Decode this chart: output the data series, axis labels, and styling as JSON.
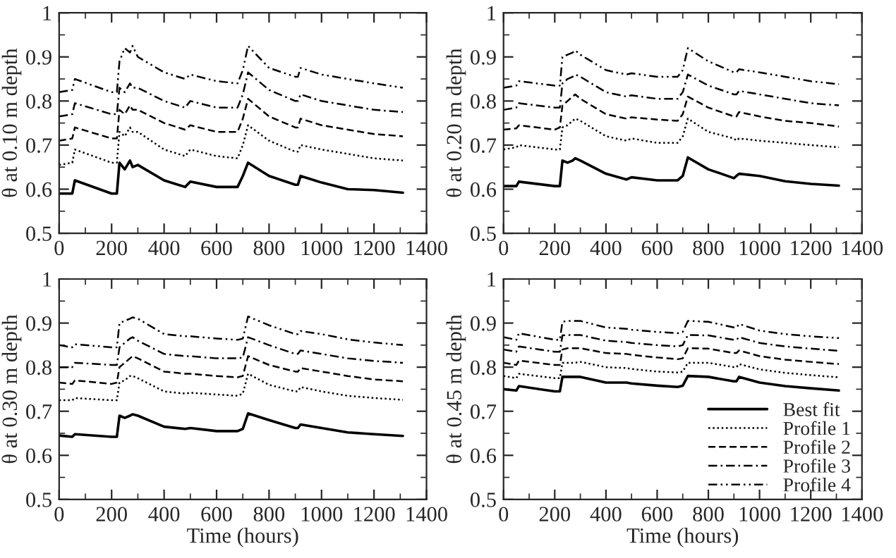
{
  "chart_data": [
    {
      "type": "line",
      "ylabel": "θ at 0.10 m depth",
      "xlim": [
        0,
        1400
      ],
      "xticks": [
        0,
        200,
        400,
        600,
        800,
        1000,
        1200,
        1400
      ],
      "ylim": [
        0.5,
        1
      ],
      "yticks": [
        0.5,
        0.6,
        0.7,
        0.8,
        0.9,
        1
      ],
      "grid": false,
      "legend": false,
      "x": [
        0,
        50,
        60,
        200,
        220,
        230,
        250,
        270,
        280,
        300,
        400,
        480,
        500,
        600,
        680,
        700,
        720,
        800,
        900,
        910,
        920,
        1000,
        1100,
        1200,
        1310
      ],
      "series": [
        {
          "color": "#000000",
          "line_style": "solid",
          "values": [
            0.59,
            0.59,
            0.62,
            0.59,
            0.59,
            0.66,
            0.645,
            0.665,
            0.65,
            0.655,
            0.62,
            0.605,
            0.617,
            0.605,
            0.605,
            0.63,
            0.66,
            0.63,
            0.61,
            0.61,
            0.63,
            0.615,
            0.6,
            0.598,
            0.592
          ]
        },
        {
          "color": "#000000",
          "line_style": "dotted",
          "values": [
            0.655,
            0.66,
            0.69,
            0.66,
            0.66,
            0.73,
            0.72,
            0.74,
            0.73,
            0.73,
            0.69,
            0.675,
            0.69,
            0.675,
            0.67,
            0.7,
            0.745,
            0.71,
            0.685,
            0.685,
            0.7,
            0.69,
            0.68,
            0.67,
            0.665
          ]
        },
        {
          "color": "#000000",
          "line_style": "dashed",
          "values": [
            0.71,
            0.715,
            0.74,
            0.715,
            0.715,
            0.78,
            0.77,
            0.79,
            0.78,
            0.78,
            0.75,
            0.735,
            0.745,
            0.73,
            0.73,
            0.76,
            0.805,
            0.765,
            0.74,
            0.74,
            0.76,
            0.745,
            0.735,
            0.725,
            0.72
          ]
        },
        {
          "color": "#000000",
          "line_style": "dashdot",
          "values": [
            0.765,
            0.77,
            0.795,
            0.77,
            0.77,
            0.83,
            0.82,
            0.84,
            0.83,
            0.83,
            0.8,
            0.785,
            0.8,
            0.785,
            0.785,
            0.815,
            0.865,
            0.825,
            0.8,
            0.8,
            0.815,
            0.8,
            0.79,
            0.78,
            0.775
          ]
        },
        {
          "color": "#000000",
          "line_style": "dashdotdot",
          "values": [
            0.82,
            0.825,
            0.85,
            0.82,
            0.82,
            0.89,
            0.92,
            0.91,
            0.925,
            0.9,
            0.865,
            0.85,
            0.86,
            0.845,
            0.84,
            0.87,
            0.925,
            0.875,
            0.855,
            0.855,
            0.875,
            0.86,
            0.85,
            0.84,
            0.83
          ]
        }
      ]
    },
    {
      "type": "line",
      "ylabel": "θ at 0.20 m depth",
      "xlim": [
        0,
        1400
      ],
      "xticks": [
        0,
        200,
        400,
        600,
        800,
        1000,
        1200,
        1400
      ],
      "ylim": [
        0.5,
        1
      ],
      "yticks": [
        0.5,
        0.6,
        0.7,
        0.8,
        0.9,
        1
      ],
      "grid": false,
      "legend": false,
      "x": [
        0,
        50,
        60,
        200,
        220,
        230,
        250,
        270,
        280,
        300,
        400,
        480,
        500,
        600,
        680,
        700,
        720,
        800,
        900,
        910,
        920,
        1000,
        1100,
        1200,
        1310
      ],
      "series": [
        {
          "color": "#000000",
          "line_style": "solid",
          "values": [
            0.607,
            0.607,
            0.617,
            0.607,
            0.607,
            0.665,
            0.66,
            0.665,
            0.67,
            0.665,
            0.635,
            0.622,
            0.627,
            0.62,
            0.62,
            0.63,
            0.672,
            0.645,
            0.625,
            0.63,
            0.635,
            0.63,
            0.618,
            0.612,
            0.608
          ]
        },
        {
          "color": "#000000",
          "line_style": "dotted",
          "values": [
            0.69,
            0.695,
            0.7,
            0.69,
            0.69,
            0.74,
            0.745,
            0.755,
            0.76,
            0.755,
            0.72,
            0.71,
            0.715,
            0.705,
            0.705,
            0.72,
            0.76,
            0.73,
            0.715,
            0.71,
            0.715,
            0.71,
            0.705,
            0.7,
            0.695
          ]
        },
        {
          "color": "#000000",
          "line_style": "dashed",
          "values": [
            0.735,
            0.738,
            0.745,
            0.735,
            0.74,
            0.79,
            0.8,
            0.81,
            0.815,
            0.805,
            0.77,
            0.76,
            0.763,
            0.758,
            0.755,
            0.77,
            0.81,
            0.785,
            0.765,
            0.765,
            0.775,
            0.765,
            0.755,
            0.75,
            0.742
          ]
        },
        {
          "color": "#000000",
          "line_style": "dashdot",
          "values": [
            0.78,
            0.785,
            0.795,
            0.785,
            0.785,
            0.84,
            0.85,
            0.855,
            0.86,
            0.855,
            0.82,
            0.81,
            0.813,
            0.805,
            0.805,
            0.82,
            0.86,
            0.835,
            0.815,
            0.815,
            0.823,
            0.815,
            0.805,
            0.795,
            0.79
          ]
        },
        {
          "color": "#000000",
          "line_style": "dashdotdot",
          "values": [
            0.83,
            0.835,
            0.845,
            0.835,
            0.835,
            0.9,
            0.905,
            0.91,
            0.915,
            0.905,
            0.87,
            0.86,
            0.863,
            0.855,
            0.855,
            0.87,
            0.92,
            0.89,
            0.865,
            0.865,
            0.872,
            0.865,
            0.855,
            0.845,
            0.838
          ]
        }
      ]
    },
    {
      "type": "line",
      "ylabel": "θ at 0.30 m depth",
      "xlabel": "Time (hours)",
      "xlim": [
        0,
        1400
      ],
      "xticks": [
        0,
        200,
        400,
        600,
        800,
        1000,
        1200,
        1400
      ],
      "ylim": [
        0.5,
        1
      ],
      "yticks": [
        0.5,
        0.6,
        0.7,
        0.8,
        0.9,
        1
      ],
      "grid": false,
      "legend": false,
      "x": [
        0,
        50,
        60,
        200,
        220,
        230,
        250,
        270,
        280,
        300,
        400,
        480,
        500,
        600,
        680,
        700,
        720,
        800,
        900,
        910,
        920,
        1000,
        1100,
        1200,
        1310
      ],
      "series": [
        {
          "color": "#000000",
          "line_style": "solid",
          "values": [
            0.645,
            0.642,
            0.648,
            0.642,
            0.642,
            0.69,
            0.685,
            0.69,
            0.693,
            0.69,
            0.665,
            0.66,
            0.662,
            0.655,
            0.655,
            0.66,
            0.695,
            0.68,
            0.662,
            0.662,
            0.67,
            0.662,
            0.652,
            0.648,
            0.644
          ]
        },
        {
          "color": "#000000",
          "line_style": "dotted",
          "values": [
            0.725,
            0.725,
            0.73,
            0.725,
            0.725,
            0.765,
            0.77,
            0.78,
            0.78,
            0.775,
            0.745,
            0.74,
            0.742,
            0.738,
            0.735,
            0.74,
            0.785,
            0.76,
            0.745,
            0.745,
            0.755,
            0.745,
            0.735,
            0.73,
            0.726
          ]
        },
        {
          "color": "#000000",
          "line_style": "dashed",
          "values": [
            0.765,
            0.762,
            0.77,
            0.762,
            0.765,
            0.8,
            0.81,
            0.82,
            0.825,
            0.82,
            0.79,
            0.785,
            0.785,
            0.78,
            0.777,
            0.78,
            0.825,
            0.805,
            0.79,
            0.79,
            0.798,
            0.79,
            0.78,
            0.772,
            0.768
          ]
        },
        {
          "color": "#000000",
          "line_style": "dashdot",
          "values": [
            0.8,
            0.8,
            0.81,
            0.805,
            0.805,
            0.845,
            0.855,
            0.865,
            0.868,
            0.86,
            0.83,
            0.825,
            0.825,
            0.82,
            0.82,
            0.822,
            0.868,
            0.85,
            0.83,
            0.83,
            0.838,
            0.83,
            0.82,
            0.814,
            0.81
          ]
        },
        {
          "color": "#000000",
          "line_style": "dashdotdot",
          "values": [
            0.85,
            0.845,
            0.852,
            0.845,
            0.845,
            0.9,
            0.905,
            0.91,
            0.913,
            0.91,
            0.875,
            0.87,
            0.87,
            0.865,
            0.862,
            0.865,
            0.915,
            0.895,
            0.875,
            0.875,
            0.882,
            0.875,
            0.863,
            0.856,
            0.85
          ]
        }
      ]
    },
    {
      "type": "line",
      "ylabel": "θ at 0.45 m depth",
      "xlabel": "Time (hours)",
      "xlim": [
        0,
        1400
      ],
      "xticks": [
        0,
        200,
        400,
        600,
        800,
        1000,
        1200,
        1400
      ],
      "ylim": [
        0.5,
        1
      ],
      "yticks": [
        0.5,
        0.6,
        0.7,
        0.8,
        0.9,
        1
      ],
      "grid": false,
      "legend": "bottom right",
      "x": [
        0,
        50,
        60,
        200,
        220,
        230,
        250,
        270,
        280,
        300,
        400,
        480,
        500,
        600,
        680,
        700,
        720,
        800,
        900,
        910,
        920,
        1000,
        1100,
        1200,
        1310
      ],
      "series": [
        {
          "name": "Best fit",
          "color": "#000000",
          "line_style": "solid",
          "values": [
            0.75,
            0.747,
            0.757,
            0.745,
            0.745,
            0.778,
            0.778,
            0.778,
            0.778,
            0.778,
            0.765,
            0.765,
            0.763,
            0.758,
            0.755,
            0.758,
            0.78,
            0.778,
            0.768,
            0.768,
            0.778,
            0.765,
            0.757,
            0.752,
            0.747
          ]
        },
        {
          "name": "Profile 1",
          "color": "#000000",
          "line_style": "dotted",
          "values": [
            0.78,
            0.775,
            0.785,
            0.775,
            0.775,
            0.81,
            0.81,
            0.81,
            0.81,
            0.812,
            0.8,
            0.798,
            0.796,
            0.79,
            0.788,
            0.79,
            0.81,
            0.81,
            0.8,
            0.8,
            0.807,
            0.795,
            0.787,
            0.782,
            0.777
          ]
        },
        {
          "name": "Profile 2",
          "color": "#000000",
          "line_style": "dashed",
          "values": [
            0.81,
            0.805,
            0.815,
            0.805,
            0.805,
            0.84,
            0.843,
            0.843,
            0.843,
            0.843,
            0.832,
            0.83,
            0.828,
            0.822,
            0.818,
            0.82,
            0.843,
            0.842,
            0.832,
            0.832,
            0.838,
            0.825,
            0.817,
            0.812,
            0.807
          ]
        },
        {
          "name": "Profile 3",
          "color": "#000000",
          "line_style": "dashdot",
          "values": [
            0.84,
            0.835,
            0.847,
            0.835,
            0.835,
            0.872,
            0.873,
            0.873,
            0.873,
            0.873,
            0.86,
            0.857,
            0.855,
            0.85,
            0.847,
            0.85,
            0.873,
            0.872,
            0.862,
            0.862,
            0.868,
            0.855,
            0.847,
            0.842,
            0.837
          ]
        },
        {
          "name": "Profile 4",
          "color": "#000000",
          "line_style": "dashdotdot",
          "values": [
            0.868,
            0.862,
            0.877,
            0.862,
            0.862,
            0.903,
            0.905,
            0.905,
            0.905,
            0.905,
            0.89,
            0.887,
            0.885,
            0.88,
            0.877,
            0.88,
            0.905,
            0.903,
            0.89,
            0.89,
            0.898,
            0.883,
            0.875,
            0.87,
            0.866
          ]
        }
      ]
    }
  ]
}
